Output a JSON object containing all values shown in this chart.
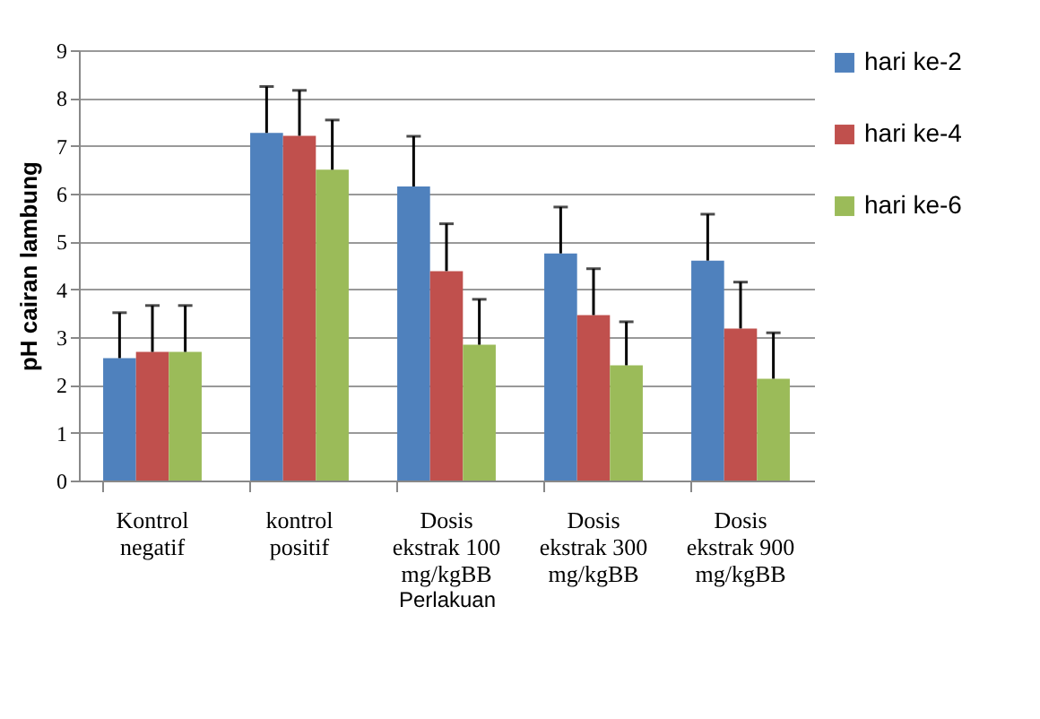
{
  "chart_data": {
    "type": "bar",
    "ylabel": "pH cairan lambung",
    "xlabel": "Perlakuan",
    "categories": [
      "Kontrol negatif",
      "kontrol positif",
      "Dosis ekstrak 100 mg/kgBB",
      "Dosis ekstrak 300 mg/kgBB",
      "Dosis ekstrak 900 mg/kgBB"
    ],
    "series": [
      {
        "name": "hari ke-2",
        "color": "#4f81bd",
        "values": [
          2.56,
          7.27,
          6.15,
          4.75,
          4.6
        ],
        "errors": [
          [
            2.56,
            3.51
          ],
          [
            7.27,
            8.24
          ],
          [
            6.15,
            7.2
          ],
          [
            4.75,
            5.72
          ],
          [
            4.6,
            5.57
          ]
        ]
      },
      {
        "name": "hari ke-4",
        "color": "#c0504d",
        "values": [
          2.69,
          7.21,
          4.38,
          3.46,
          3.18
        ],
        "errors": [
          [
            2.69,
            3.66
          ],
          [
            7.21,
            8.16
          ],
          [
            4.38,
            5.37
          ],
          [
            3.46,
            4.43
          ],
          [
            3.18,
            4.15
          ]
        ]
      },
      {
        "name": "hari ke-6",
        "color": "#9bbb59",
        "values": [
          2.69,
          6.5,
          2.84,
          2.41,
          2.13
        ],
        "errors": [
          [
            2.69,
            3.66
          ],
          [
            6.5,
            7.54
          ],
          [
            2.84,
            3.79
          ],
          [
            2.41,
            3.32
          ],
          [
            2.13,
            3.09
          ]
        ]
      }
    ],
    "ylim": [
      0,
      9
    ],
    "yticks": [
      0,
      1,
      2,
      3,
      4,
      5,
      6,
      7,
      8,
      9
    ],
    "grid": "y",
    "legend": "right"
  }
}
